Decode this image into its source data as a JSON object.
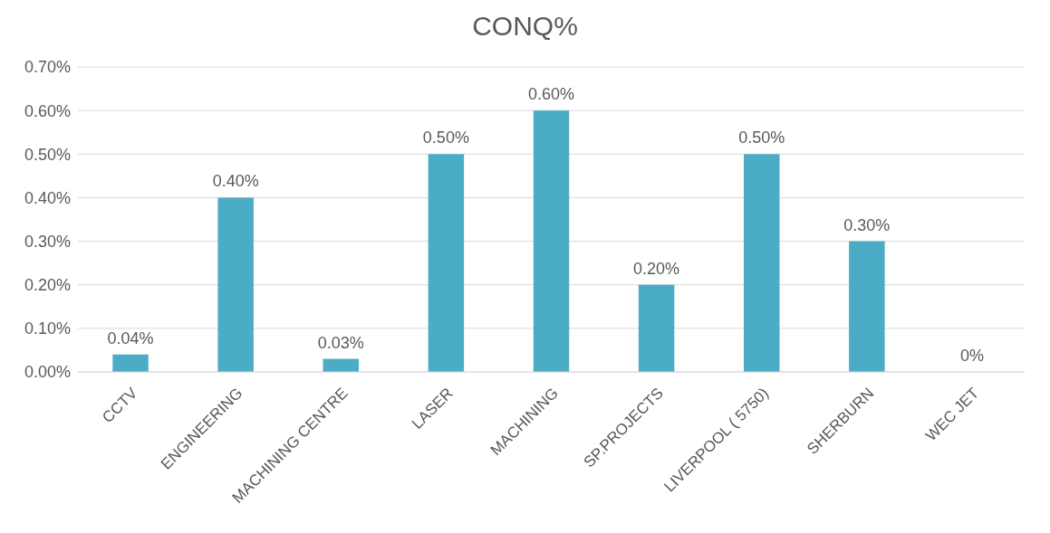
{
  "chart_data": {
    "type": "bar",
    "title": "CONQ%",
    "categories": [
      "CCTV",
      "ENGINEERING",
      "MACHINING CENTRE",
      "LASER",
      "MACHINING",
      "SP.PROJECTS",
      "LIVERPOOL ( 5750)",
      "SHERBURN",
      "WEC JET"
    ],
    "values": [
      0.04,
      0.4,
      0.03,
      0.5,
      0.6,
      0.2,
      0.5,
      0.3,
      0
    ],
    "value_labels": [
      "0.04%",
      "0.40%",
      "0.03%",
      "0.50%",
      "0.60%",
      "0.20%",
      "0.50%",
      "0.30%",
      "0%"
    ],
    "color": "#4bacc6",
    "ylim": [
      0,
      0.7
    ],
    "yticks": [
      {
        "value": 0,
        "label": "0.00%"
      },
      {
        "value": 0.1,
        "label": "0.10%"
      },
      {
        "value": 0.2,
        "label": "0.20%"
      },
      {
        "value": 0.3,
        "label": "0.30%"
      },
      {
        "value": 0.4,
        "label": "0.40%"
      },
      {
        "value": 0.5,
        "label": "0.50%"
      },
      {
        "value": 0.6,
        "label": "0.60%"
      },
      {
        "value": 0.7,
        "label": "0.70%"
      }
    ],
    "grid": "y"
  }
}
